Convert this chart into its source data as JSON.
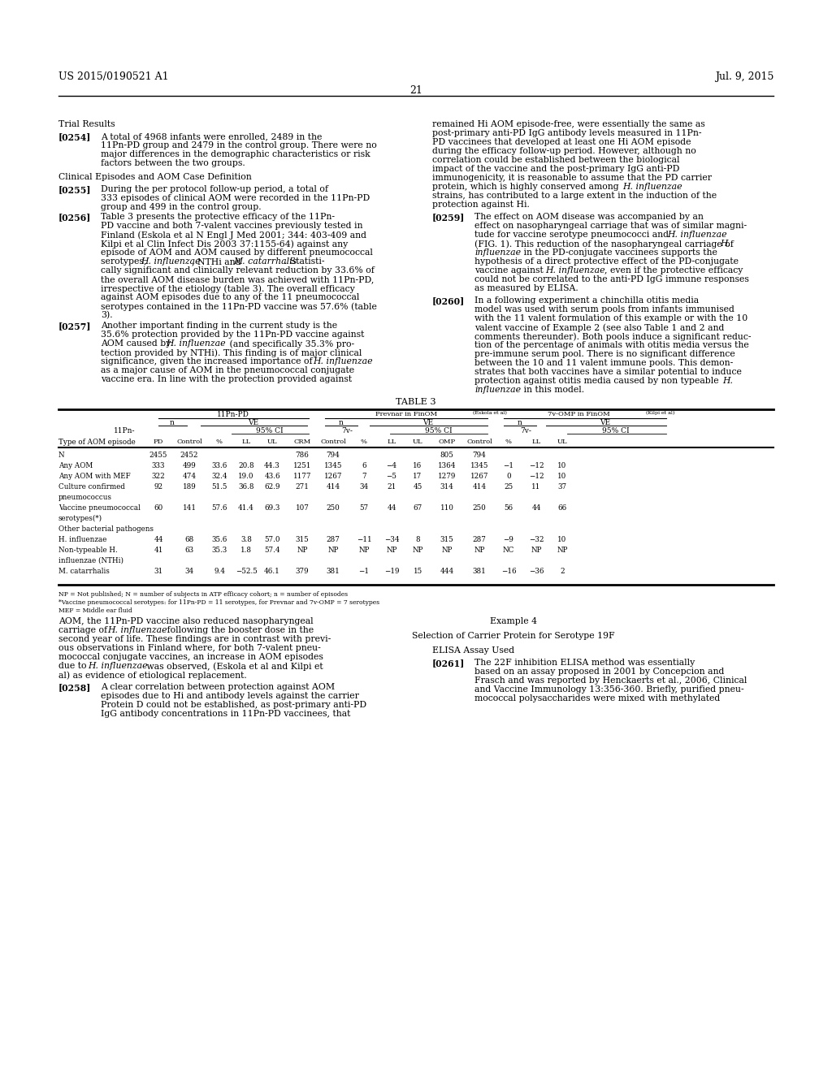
{
  "patent_number": "US 2015/0190521 A1",
  "patent_date": "Jul. 9, 2015",
  "page_number": "21",
  "bg": "#ffffff"
}
